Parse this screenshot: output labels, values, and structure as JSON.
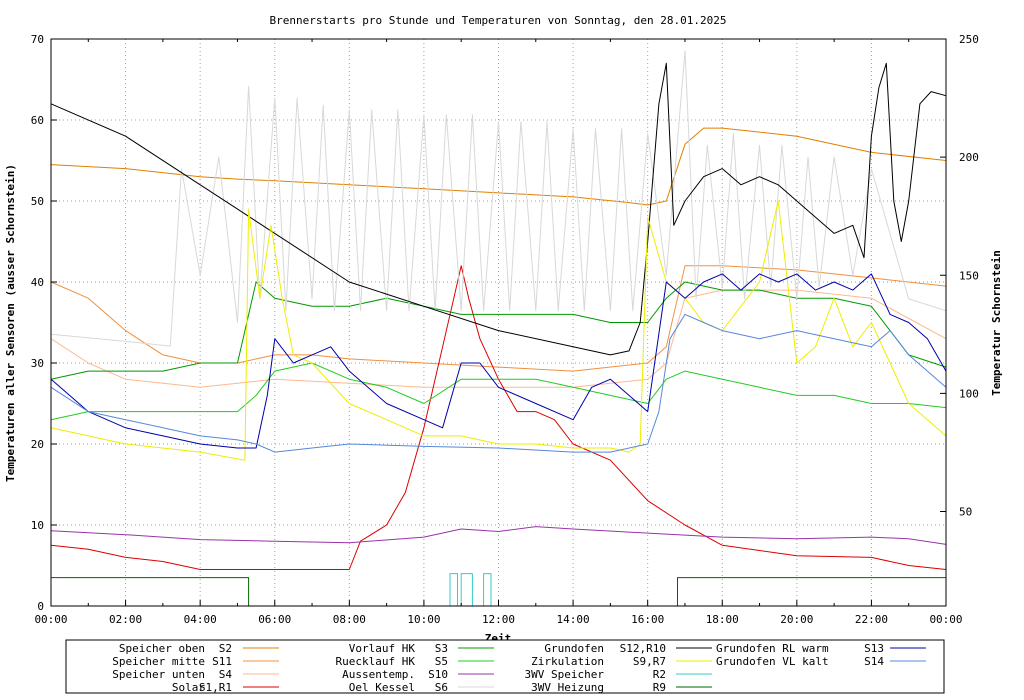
{
  "chart_data": {
    "type": "line",
    "title": "Brennerstarts pro Stunde und Temperaturen von Sonntag, den 28.01.2025",
    "xlabel": "Zeit",
    "ylabel": "Temperaturen aller Sensoren (ausser Schornstein)",
    "y2label": "Temperatur Schornstein",
    "y2label_color": "#ff66cc",
    "xlim": [
      0,
      24
    ],
    "ylim": [
      0,
      70
    ],
    "y2lim": [
      10,
      250
    ],
    "grid": true,
    "x_ticks": [
      "00:00",
      "02:00",
      "04:00",
      "06:00",
      "08:00",
      "10:00",
      "12:00",
      "14:00",
      "16:00",
      "18:00",
      "20:00",
      "22:00",
      "00:00"
    ],
    "y_ticks": [
      "0",
      "10",
      "20",
      "30",
      "40",
      "50",
      "60",
      "70"
    ],
    "y2_ticks": [
      "50",
      "100",
      "150",
      "200",
      "250"
    ],
    "legend_position": "bottom",
    "legend": [
      {
        "label": "Speicher oben",
        "code": "S2",
        "color": "#e08000"
      },
      {
        "label": "Speicher mitte",
        "code": "S11",
        "color": "#f09040"
      },
      {
        "label": "Speicher unten",
        "code": "S4",
        "color": "#ffb890"
      },
      {
        "label": "Solar",
        "code": "S1,R1",
        "color": "#dd0000"
      },
      {
        "label": "Vorlauf HK",
        "code": "S3",
        "color": "#009900"
      },
      {
        "label": "Ruecklauf HK",
        "code": "S5",
        "color": "#22cc22"
      },
      {
        "label": "Aussentemp.",
        "code": "S10",
        "color": "#9933aa"
      },
      {
        "label": "Oel Kessel",
        "code": "S6",
        "color": "#d8d8d8"
      },
      {
        "label": "Grundofen",
        "code": "S12,R10",
        "color": "#000000"
      },
      {
        "label": "Zirkulation",
        "code": "S9,R7",
        "color": "#eeee00"
      },
      {
        "label": "3WV Speicher",
        "code": "R2",
        "color": "#33cccc"
      },
      {
        "label": "3WV Heizung",
        "code": "R9",
        "color": "#006600"
      },
      {
        "label": "Grundofen RL warm",
        "code": "S13",
        "color": "#0000aa"
      },
      {
        "label": "Grundofen VL kalt",
        "code": "S14",
        "color": "#5588dd"
      }
    ],
    "series": [
      {
        "name": "Speicher oben S2",
        "color": "#e08000",
        "x": [
          0,
          2,
          4,
          5,
          6,
          8,
          10,
          12,
          14,
          15.5,
          16,
          16.5,
          17,
          17.5,
          18,
          20,
          22,
          24
        ],
        "y": [
          54.5,
          54,
          53,
          52.7,
          52.5,
          52,
          51.5,
          51,
          50.5,
          49.8,
          49.5,
          50,
          57,
          59,
          59,
          58,
          56,
          55
        ]
      },
      {
        "name": "Speicher mitte S11",
        "color": "#f09040",
        "x": [
          0,
          1,
          2,
          3,
          4,
          5,
          6,
          7,
          8,
          10,
          12,
          14,
          16,
          16.5,
          17,
          18,
          20,
          22,
          24
        ],
        "y": [
          40,
          38,
          34,
          31,
          30,
          30,
          31,
          31,
          30.5,
          30,
          29.5,
          29,
          30,
          32,
          42,
          42,
          41.5,
          40.5,
          39.5
        ]
      },
      {
        "name": "Speicher unten S4",
        "color": "#ffb890",
        "x": [
          0,
          1,
          2,
          4,
          6,
          8,
          10,
          12,
          14,
          16,
          16.5,
          17,
          18,
          20,
          22,
          24
        ],
        "y": [
          33,
          30,
          28,
          27,
          28,
          27.5,
          27,
          27,
          27,
          28,
          30,
          38,
          39,
          39,
          38,
          33
        ]
      },
      {
        "name": "Solar S1,R1",
        "color": "#dd0000",
        "x": [
          0,
          1,
          2,
          3,
          4,
          5,
          6,
          7,
          8,
          8.3,
          9,
          9.5,
          10,
          10.5,
          10.8,
          11,
          11.2,
          11.5,
          12,
          12.5,
          13,
          13.5,
          14,
          15,
          16,
          17,
          18,
          20,
          22,
          23,
          24
        ],
        "y": [
          7.5,
          7,
          6,
          5.5,
          4.5,
          4.5,
          4.5,
          4.5,
          4.5,
          8,
          10,
          14,
          22,
          32,
          38,
          42,
          38,
          33,
          28,
          24,
          24,
          23,
          20,
          18,
          13,
          10,
          7.5,
          6.2,
          6,
          5,
          4.5
        ]
      },
      {
        "name": "Vorlauf HK S3",
        "color": "#009900",
        "x": [
          0,
          1,
          2,
          3,
          4,
          5,
          5.5,
          6,
          7,
          8,
          9,
          10,
          11,
          12,
          13,
          14,
          15,
          16,
          16.5,
          17,
          18,
          19,
          20,
          21,
          22,
          23,
          24
        ],
        "y": [
          28,
          29,
          29,
          29,
          30,
          30,
          40,
          38,
          37,
          37,
          38,
          37,
          36,
          36,
          36,
          36,
          35,
          35,
          38,
          40,
          39,
          39,
          38,
          38,
          37,
          31,
          29.5
        ]
      },
      {
        "name": "Ruecklauf HK S5",
        "color": "#22cc22",
        "x": [
          0,
          1,
          2,
          3,
          4,
          5,
          5.5,
          6,
          7,
          8,
          9,
          10,
          11,
          12,
          13,
          14,
          15,
          16,
          16.5,
          17,
          18,
          19,
          20,
          21,
          22,
          23,
          24
        ],
        "y": [
          23,
          24,
          24,
          24,
          24,
          24,
          26,
          29,
          30,
          28,
          27,
          25,
          28,
          28,
          28,
          27,
          26,
          25,
          28,
          29,
          28,
          27,
          26,
          26,
          25,
          25,
          24.5
        ]
      },
      {
        "name": "Aussentemp. S10",
        "color": "#9933aa",
        "x": [
          0,
          2,
          4,
          6,
          8,
          10,
          11,
          12,
          13,
          14,
          16,
          18,
          20,
          22,
          23,
          24
        ],
        "y": [
          9.3,
          8.8,
          8.2,
          8,
          7.8,
          8.5,
          9.5,
          9.2,
          9.8,
          9.5,
          9,
          8.5,
          8.3,
          8.5,
          8.3,
          7.6
        ]
      },
      {
        "name": "Oel Kessel S6",
        "color": "#d8d8d8",
        "axis": "y2",
        "x": [
          0,
          2,
          3.2,
          3.5,
          4,
          4.5,
          5,
          5.3,
          5.6,
          6,
          6.3,
          6.6,
          7,
          7.3,
          7.6,
          8,
          8.3,
          8.6,
          9,
          9.3,
          9.6,
          10,
          10.3,
          10.6,
          11,
          11.3,
          11.6,
          12,
          12.3,
          12.6,
          13,
          13.3,
          13.6,
          14,
          14.3,
          14.6,
          15,
          15.3,
          15.6,
          16,
          16.5,
          17,
          17.3,
          17.6,
          18,
          18.3,
          18.6,
          19,
          19.3,
          19.6,
          20,
          20.3,
          20.6,
          21,
          21.5,
          22,
          23,
          24
        ],
        "y": [
          125,
          122,
          120,
          195,
          150,
          200,
          130,
          230,
          140,
          225,
          135,
          225,
          140,
          222,
          135,
          220,
          135,
          220,
          135,
          220,
          135,
          218,
          135,
          218,
          135,
          218,
          135,
          215,
          135,
          215,
          135,
          215,
          135,
          212,
          135,
          212,
          135,
          212,
          135,
          210,
          150,
          245,
          140,
          205,
          145,
          210,
          140,
          205,
          145,
          205,
          140,
          200,
          145,
          200,
          150,
          195,
          140,
          135
        ]
      },
      {
        "name": "Grundofen S12,R10",
        "color": "#000000",
        "x": [
          0,
          2,
          4,
          5,
          6,
          8,
          10,
          12,
          14,
          15,
          15.5,
          15.8,
          16,
          16.3,
          16.5,
          16.7,
          17,
          17.5,
          18,
          18.5,
          19,
          19.5,
          20,
          20.5,
          21,
          21.5,
          21.8,
          22,
          22.2,
          22.4,
          22.6,
          22.8,
          23,
          23.3,
          23.6,
          24
        ],
        "y": [
          62,
          58,
          52,
          49,
          46,
          40,
          37,
          34,
          32,
          31,
          31.5,
          35,
          45,
          62,
          67,
          47,
          50,
          53,
          54,
          52,
          53,
          52,
          50,
          48,
          46,
          47,
          43,
          58,
          64,
          67,
          50,
          45,
          50,
          62,
          63.5,
          63
        ]
      },
      {
        "name": "Zirkulation S9,R7",
        "color": "#eeee00",
        "x": [
          0,
          1,
          2,
          4,
          5.2,
          5.3,
          5.6,
          5.9,
          6.2,
          6.5,
          7,
          8,
          9,
          10,
          11,
          12,
          13,
          14,
          15,
          15.5,
          15.8,
          16,
          16.5,
          17,
          17.5,
          18,
          19,
          19.5,
          20,
          20.5,
          21,
          21.5,
          22,
          23,
          24
        ],
        "y": [
          22,
          21,
          20,
          19,
          18,
          49,
          38,
          47,
          38,
          31,
          30,
          25,
          23,
          21,
          21,
          20,
          20,
          19.5,
          19.5,
          19,
          20,
          48,
          40,
          38,
          35,
          34,
          40,
          50,
          30,
          32,
          38,
          32,
          35,
          25,
          21
        ]
      },
      {
        "name": "Grundofen RL warm S13",
        "color": "#0000aa",
        "x": [
          0,
          1,
          2,
          3,
          4,
          5,
          5.5,
          5.8,
          6,
          6.5,
          7,
          7.5,
          8,
          9,
          10,
          10.5,
          11,
          11.5,
          12,
          13,
          14,
          14.5,
          15,
          15.5,
          16,
          16.5,
          17,
          17.5,
          18,
          18.5,
          19,
          19.5,
          20,
          20.5,
          21,
          21.5,
          22,
          22.5,
          23,
          23.5,
          24
        ],
        "y": [
          28,
          24,
          22,
          21,
          20,
          19.5,
          19.5,
          26,
          33,
          30,
          31,
          32,
          29,
          25,
          23,
          22,
          30,
          30,
          27,
          25,
          23,
          27,
          28,
          26,
          24,
          40,
          38,
          40,
          41,
          39,
          41,
          40,
          41,
          39,
          40,
          39,
          41,
          36,
          35,
          33,
          29
        ]
      },
      {
        "name": "Grundofen VL kalt S14",
        "color": "#5588dd",
        "x": [
          0,
          1,
          2,
          3,
          4,
          5,
          5.5,
          6,
          7,
          8,
          10,
          12,
          14,
          15,
          16,
          16.3,
          16.6,
          17,
          17.5,
          18,
          19,
          20,
          21,
          22,
          22.5,
          23,
          23.5,
          24
        ],
        "y": [
          27,
          24,
          23,
          22,
          21,
          20.5,
          20,
          19,
          19.5,
          20,
          19.7,
          19.5,
          19,
          19,
          20,
          24,
          33,
          36,
          35,
          34,
          33,
          34,
          33,
          32,
          34,
          31,
          29,
          27
        ]
      },
      {
        "name": "3WV Speicher R2",
        "color": "#33cccc",
        "x": [
          0,
          10.7,
          10.7,
          10.9,
          10.9,
          11,
          11,
          11.3,
          11.3,
          11.6,
          11.6,
          11.8,
          11.8,
          12,
          12,
          24
        ],
        "y": [
          0,
          0,
          4,
          4,
          0,
          0,
          4,
          4,
          0,
          0,
          4,
          4,
          0,
          0,
          0,
          0
        ]
      },
      {
        "name": "3WV Heizung R9",
        "color": "#006600",
        "x": [
          0,
          5.3,
          5.3,
          16.8,
          16.8,
          24
        ],
        "y": [
          3.5,
          3.5,
          0,
          0,
          3.5,
          3.5
        ]
      }
    ]
  }
}
